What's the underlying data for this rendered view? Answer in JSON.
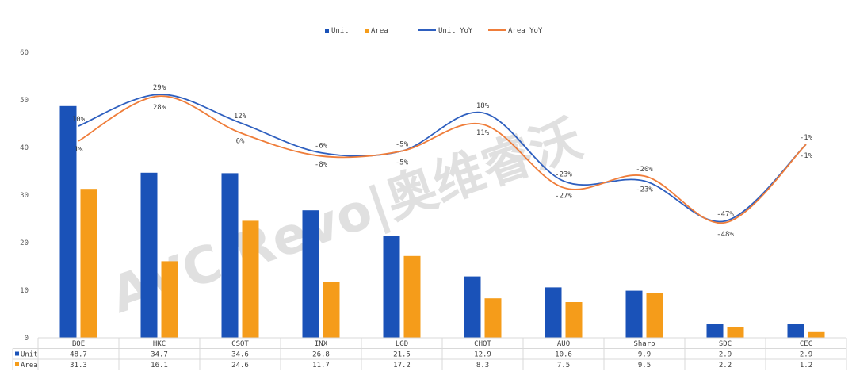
{
  "chart_data": {
    "type": "bar",
    "categories": [
      "BOE",
      "HKC",
      "CSOT",
      "INX",
      "LGD",
      "CHOT",
      "AUO",
      "Sharp",
      "SDC",
      "CEC"
    ],
    "series": [
      {
        "name": "Unit",
        "kind": "bar",
        "color": "#1a52b8",
        "values": [
          48.7,
          34.7,
          34.6,
          26.8,
          21.5,
          12.9,
          10.6,
          9.9,
          2.9,
          2.9
        ],
        "labels": [
          "48.7",
          "34.7",
          "34.6",
          "26.8",
          "21.5",
          "12.9",
          "10.6",
          "9.9",
          "2.9",
          "2.9"
        ]
      },
      {
        "name": "Area",
        "kind": "bar",
        "color": "#f59c1a",
        "values": [
          31.3,
          16.1,
          24.6,
          11.7,
          17.2,
          8.3,
          7.5,
          9.5,
          2.2,
          1.2
        ],
        "labels": [
          "31.3",
          "16.1",
          "24.6",
          "11.7",
          "17.2",
          "8.3",
          "7.5",
          "9.5",
          "2.2",
          "1.2"
        ]
      }
    ],
    "yoy_series": [
      {
        "name": "Unit YoY",
        "color": "#2e5fbf",
        "values": [
          10,
          29,
          12,
          -6,
          -5,
          18,
          -23,
          -23,
          -47,
          -1
        ],
        "labels": [
          "10%",
          "29%",
          "12%",
          "-6%",
          "-5%",
          "18%",
          "-23%",
          "-23%",
          "-47%",
          "-1%"
        ]
      },
      {
        "name": "Area YoY",
        "color": "#ef7d3a",
        "values": [
          1,
          28,
          6,
          -8,
          -5,
          11,
          -27,
          -20,
          -48,
          -1
        ],
        "labels": [
          "1%",
          "28%",
          "6%",
          "-8%",
          "-5%",
          "11%",
          "-27%",
          "-20%",
          "-48%",
          "-1%"
        ]
      }
    ],
    "y_ticks": [
      "0",
      "10",
      "20",
      "30",
      "40",
      "50",
      "60"
    ],
    "ylim": [
      0,
      60
    ],
    "legend_position": "top-center",
    "grid": false,
    "watermark": "AVC Revo|奥维睿沃"
  }
}
